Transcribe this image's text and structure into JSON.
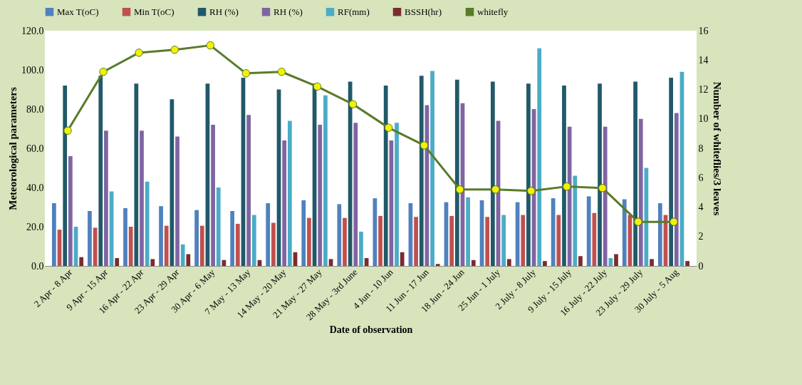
{
  "chart_data": {
    "type": "bar",
    "xlabel": "Date of observation",
    "ylabel": "Meteorological parameters",
    "y2label": "Number of whiteflies/3 leaves",
    "categories": [
      "2 Apr -  8 Apr",
      "9 Apr - 15 Apr",
      "16 Apr - 22 Apr",
      "23 Apr - 29 Apr",
      "30 Apr - 6 May",
      "7 May - 13 May",
      "14 May - 20 May",
      "21 May - 27 May",
      "28 May - 3rd June",
      "4 Jun - 10 Jun",
      "11 Jun - 17 Jun",
      "18 Jun - 24 Jun",
      "25 Jun - 1 July",
      "2 July - 8 July",
      "9 July - 15 July",
      "16 July - 22 July",
      "23 July - 29 July",
      "30 July - 5 Aug"
    ],
    "series": [
      {
        "name": "Max T(oC)",
        "color": "#4f81bd",
        "values": [
          32,
          28,
          29.5,
          30.5,
          28.5,
          28,
          32,
          33.5,
          31.5,
          34.5,
          32,
          32.5,
          33.5,
          32.5,
          34.5,
          35.5,
          34,
          32
        ]
      },
      {
        "name": "Min T(oC)",
        "color": "#c0504d",
        "values": [
          18.5,
          19.5,
          20,
          20.5,
          20.5,
          21.5,
          22,
          24.5,
          24.5,
          25.5,
          25,
          25.5,
          25,
          26,
          26,
          27,
          26,
          26
        ]
      },
      {
        "name": "RH (%)",
        "color": "#215968",
        "values": [
          92,
          97,
          93,
          85,
          93,
          96,
          90,
          93,
          94,
          92,
          97,
          95,
          94,
          93,
          92,
          93,
          94,
          96
        ]
      },
      {
        "name": "RH (%)",
        "color": "#8064a2",
        "values": [
          56,
          69,
          69,
          66,
          72,
          77,
          64,
          72,
          73,
          64,
          82,
          83,
          74,
          80,
          71,
          71,
          75,
          78
        ]
      },
      {
        "name": "RF(mm)",
        "color": "#4bacc6",
        "values": [
          20,
          38,
          43,
          11,
          40,
          26,
          74,
          87,
          17.5,
          73,
          99.5,
          35,
          26,
          111,
          46,
          4,
          50,
          99
        ]
      },
      {
        "name": "BSSH(hr)",
        "color": "#7b2c2c",
        "values": [
          4.5,
          4,
          3.5,
          6,
          3,
          3,
          7,
          3.5,
          4,
          7,
          1,
          3,
          3.5,
          2.5,
          5,
          6,
          3.5,
          2.5
        ]
      },
      {
        "name": "whitefly",
        "type": "line",
        "axis": "y2",
        "color": "#5a7a2a",
        "marker": "circle",
        "values": [
          9.2,
          13.2,
          14.5,
          14.7,
          15,
          13.1,
          13.2,
          12.2,
          11,
          9.4,
          8.2,
          5.2,
          5.2,
          5.1,
          5.4,
          5.3,
          3,
          3
        ]
      }
    ],
    "ylim": [
      0,
      120
    ],
    "yticks": [
      {
        "value": 0,
        "label": "0.0"
      },
      {
        "value": 20,
        "label": "20.0"
      },
      {
        "value": 40,
        "label": "40.0"
      },
      {
        "value": 60,
        "label": "60.0"
      },
      {
        "value": 80,
        "label": "80.0"
      },
      {
        "value": 100,
        "label": "100.0"
      },
      {
        "value": 120,
        "label": "120.0"
      }
    ],
    "y2lim": [
      0,
      16
    ],
    "y2ticks": [
      0,
      2,
      4,
      6,
      8,
      10,
      12,
      14,
      16
    ],
    "legend": "top",
    "grid": false
  }
}
